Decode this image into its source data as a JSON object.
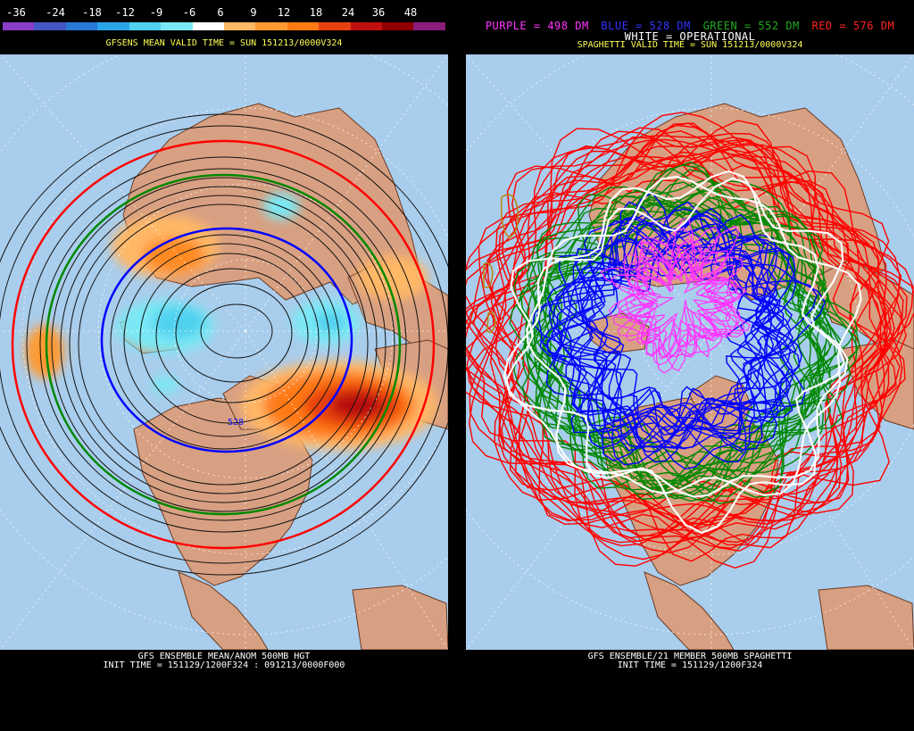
{
  "colors": {
    "ocean": "#a9cdec",
    "land": "#d8a082",
    "border": "#6b3a22",
    "purple": "#ff33ff",
    "blue": "#0000ff",
    "green": "#008800",
    "red": "#ff0000",
    "white": "#ffffff",
    "black": "#111111"
  },
  "left": {
    "scale": {
      "labels": [
        "-36",
        "-24",
        "-18",
        "-12",
        "-9",
        "-6",
        "6",
        "9",
        "12",
        "18",
        "24",
        "36",
        "48"
      ],
      "colors": [
        "#8a3ec7",
        "#4258c5",
        "#2a78d6",
        "#2aa5e8",
        "#4fd1ef",
        "#7ae9f5",
        "#ffffff",
        "#ffb866",
        "#ff9a33",
        "#ff7a12",
        "#e84010",
        "#c01010",
        "#900000",
        "#8a1c7a"
      ]
    },
    "header": "GFSENS MEAN VALID TIME = SUN 151213/0000V324",
    "contour_label": "528",
    "footer_line1": "GFS ENSEMBLE MEAN/ANOM 500MB HGT",
    "footer_line2": "INIT TIME = 151129/1200F324 : 091213/0000F000"
  },
  "right": {
    "legend": {
      "purple": "PURPLE = 498 DM",
      "blue": "BLUE = 528 DM",
      "green": "GREEN = 552 DM",
      "red": "RED = 576 DM",
      "white": "WHITE = OPERATIONAL"
    },
    "header": "SPAGHETTI VALID TIME = SUN 151213/0000V324",
    "footer_line1": "GFS ENSEMBLE/21 MEMBER 500MB SPAGHETTI",
    "footer_line2": "INIT TIME = 151129/1200F324"
  }
}
